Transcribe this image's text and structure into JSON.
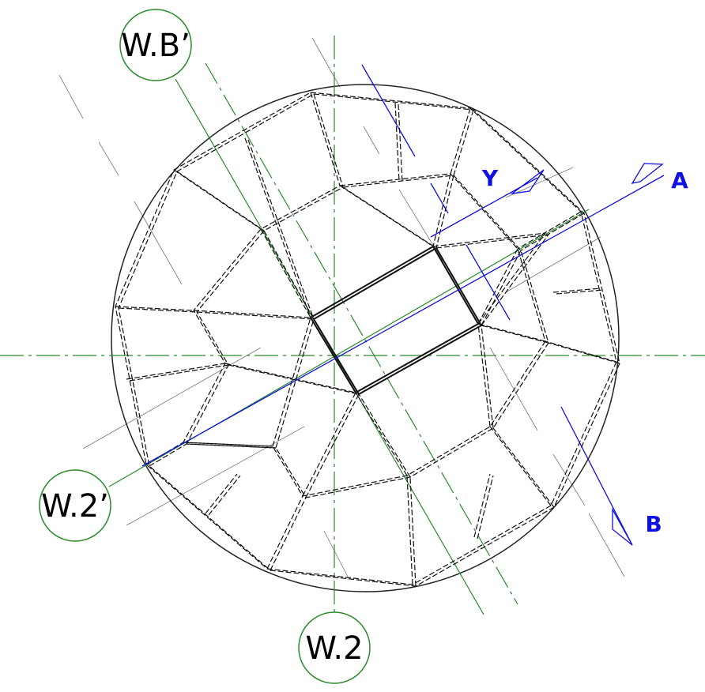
{
  "labels": {
    "wb": "W.B’",
    "w2p": "W.2’",
    "w2": "W.2",
    "y": "Y",
    "a": "A",
    "b": "B"
  }
}
